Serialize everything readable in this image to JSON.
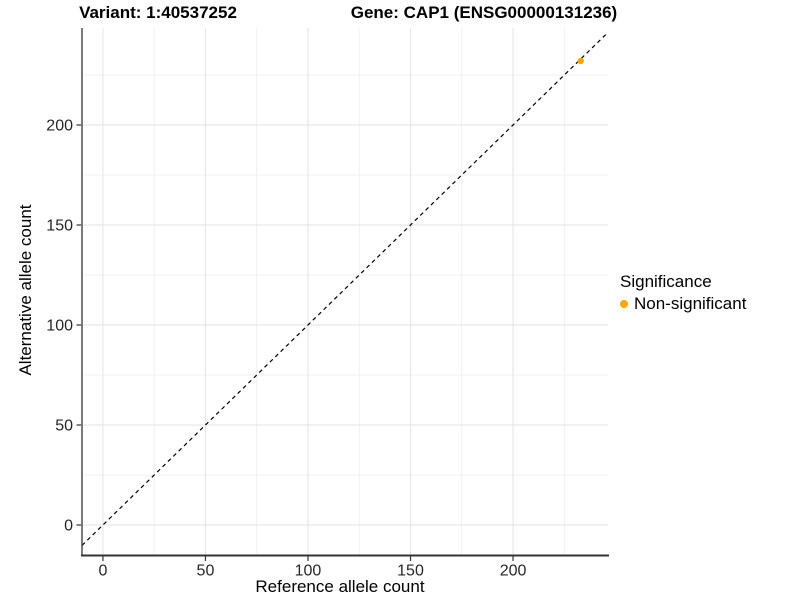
{
  "titles": {
    "variant": "Variant: 1:40537252",
    "gene": "Gene: CAP1 (ENSG00000131236)"
  },
  "chart_data": {
    "type": "scatter",
    "xlabel": "Reference allele count",
    "ylabel": "Alternative allele count",
    "x_ticks": [
      0,
      50,
      100,
      150,
      200
    ],
    "y_ticks": [
      0,
      50,
      100,
      150,
      200
    ],
    "x_minor": [
      25,
      75,
      125,
      175,
      225
    ],
    "y_minor": [
      25,
      75,
      125,
      175,
      225
    ],
    "xlim": [
      -10.2,
      246.3
    ],
    "ylim": [
      -15,
      248.5
    ],
    "grid": true,
    "points": [
      {
        "x": 233,
        "y": 232,
        "series": "Non-significant",
        "color": "#FFA500"
      }
    ],
    "identity_line": {
      "slope": 1,
      "intercept": 0,
      "style": "dashed",
      "color": "#000000"
    },
    "legend": {
      "title": "Significance",
      "position": "right",
      "items": [
        {
          "label": "Non-significant",
          "color": "#FFA500"
        }
      ]
    }
  },
  "colors": {
    "point": "#FFA500",
    "grid_major": "#E3E3E3",
    "grid_minor": "#F0F0F0",
    "axis_line": "#333333",
    "tick_text": "#262626",
    "background": "#FFFFFF"
  }
}
